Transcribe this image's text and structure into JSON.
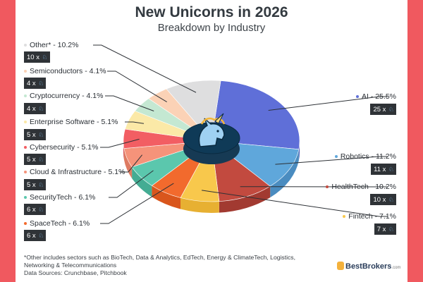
{
  "title": "New Unicorns in 2026",
  "subtitle": "Breakdown by Industry",
  "chart_data": {
    "type": "pie",
    "title": "New Unicorns in 2026",
    "subtitle": "Breakdown by Industry",
    "unit": "%",
    "slices": [
      {
        "label": "AI - 25.5%",
        "name": "AI",
        "value": 25.5,
        "count_label": "25 x",
        "count": 25,
        "color": "#5f6fd8",
        "side_color": "#4655b3"
      },
      {
        "label": "Robotics - 11.2%",
        "name": "Robotics",
        "value": 11.2,
        "count_label": "11 x",
        "count": 11,
        "color": "#5fa7db",
        "side_color": "#4a8cc0"
      },
      {
        "label": "HealthTech - 10.2%",
        "name": "HealthTech",
        "value": 10.2,
        "count_label": "10 x",
        "count": 10,
        "color": "#c24a3f",
        "side_color": "#a23a31"
      },
      {
        "label": "Fintech - 7.1%",
        "name": "Fintech",
        "value": 7.1,
        "count_label": "7 x",
        "count": 7,
        "color": "#f8c84c",
        "side_color": "#e7b032"
      },
      {
        "label": "SpaceTech - 6.1%",
        "name": "SpaceTech",
        "value": 6.1,
        "count_label": "6 x",
        "count": 6,
        "color": "#f26a2d",
        "side_color": "#d9561c"
      },
      {
        "label": "SecurityTech - 6.1%",
        "name": "SecurityTech",
        "value": 6.1,
        "count_label": "6 x",
        "count": 6,
        "color": "#5bc7ad",
        "side_color": "#44ac93"
      },
      {
        "label": "Cloud & Infrastructure - 5.1%",
        "name": "Cloud & Infrastructure",
        "value": 5.1,
        "count_label": "5 x",
        "count": 5,
        "color": "#f5937a",
        "side_color": "#de7b62"
      },
      {
        "label": "Cybersecurity - 5.1%",
        "name": "Cybersecurity",
        "value": 5.1,
        "count_label": "5 x",
        "count": 5,
        "color": "#f25e63",
        "side_color": "#d84a50"
      },
      {
        "label": "Enterprise Software - 5.1%",
        "name": "Enterprise Software",
        "value": 5.1,
        "count_label": "5 x",
        "count": 5,
        "color": "#fbe9a7",
        "side_color": "#e8d48c"
      },
      {
        "label": "Cryptocurrency - 4.1%",
        "name": "Cryptocurrency",
        "value": 4.1,
        "count_label": "4 x",
        "count": 4,
        "color": "#c4e8d2",
        "side_color": "#a9d2b9"
      },
      {
        "label": "Semiconductors - 4.1%",
        "name": "Semiconductors",
        "value": 4.1,
        "count_label": "4 x",
        "count": 4,
        "color": "#fbd2b6",
        "side_color": "#e6b999"
      },
      {
        "label": "Other* - 10.2%",
        "name": "Other*",
        "value": 10.2,
        "count_label": "10 x",
        "count": 10,
        "color": "#dededf",
        "side_color": "#c4c4c6"
      }
    ]
  },
  "footnote": {
    "line1": "*Other includes sectors such as BioTech, Data & Analytics, EdTech, Energy & ClimateTech, Logistics,",
    "line2": "Networking & Telecommunications",
    "line3": "Data Sources: Crunchbase, Pitchbook"
  },
  "logo": {
    "name": "BestBrokers",
    "suffix": ".com"
  },
  "icons": {
    "badge_icon": "unicorn-icon",
    "center_icon": "unicorn-head-icon"
  },
  "colors": {
    "frame": "#f0595f",
    "badge_bg": "#2f3337"
  }
}
